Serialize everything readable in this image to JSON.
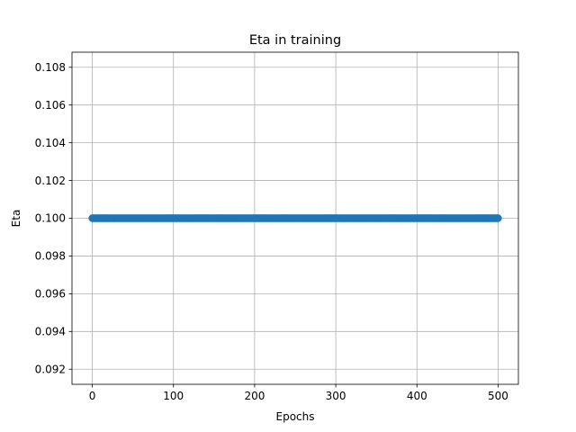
{
  "chart_data": {
    "type": "line",
    "title": "Eta in training",
    "xlabel": "Epochs",
    "ylabel": "Eta",
    "xlim": [
      -25,
      525
    ],
    "ylim": [
      0.0912,
      0.1088
    ],
    "xticks": [
      0,
      100,
      200,
      300,
      400,
      500
    ],
    "xtick_labels": [
      "0",
      "100",
      "200",
      "300",
      "400",
      "500"
    ],
    "yticks": [
      0.092,
      0.094,
      0.096,
      0.098,
      0.1,
      0.102,
      0.104,
      0.106,
      0.108
    ],
    "ytick_labels": [
      "0.092",
      "0.094",
      "0.096",
      "0.098",
      "0.100",
      "0.102",
      "0.104",
      "0.106",
      "0.108"
    ],
    "grid": true,
    "marker": "circle",
    "series_color": "#1f77b4",
    "series": [
      {
        "x_start": 0,
        "x_end": 500,
        "x_step": 1,
        "y_constant": 0.1
      }
    ]
  }
}
